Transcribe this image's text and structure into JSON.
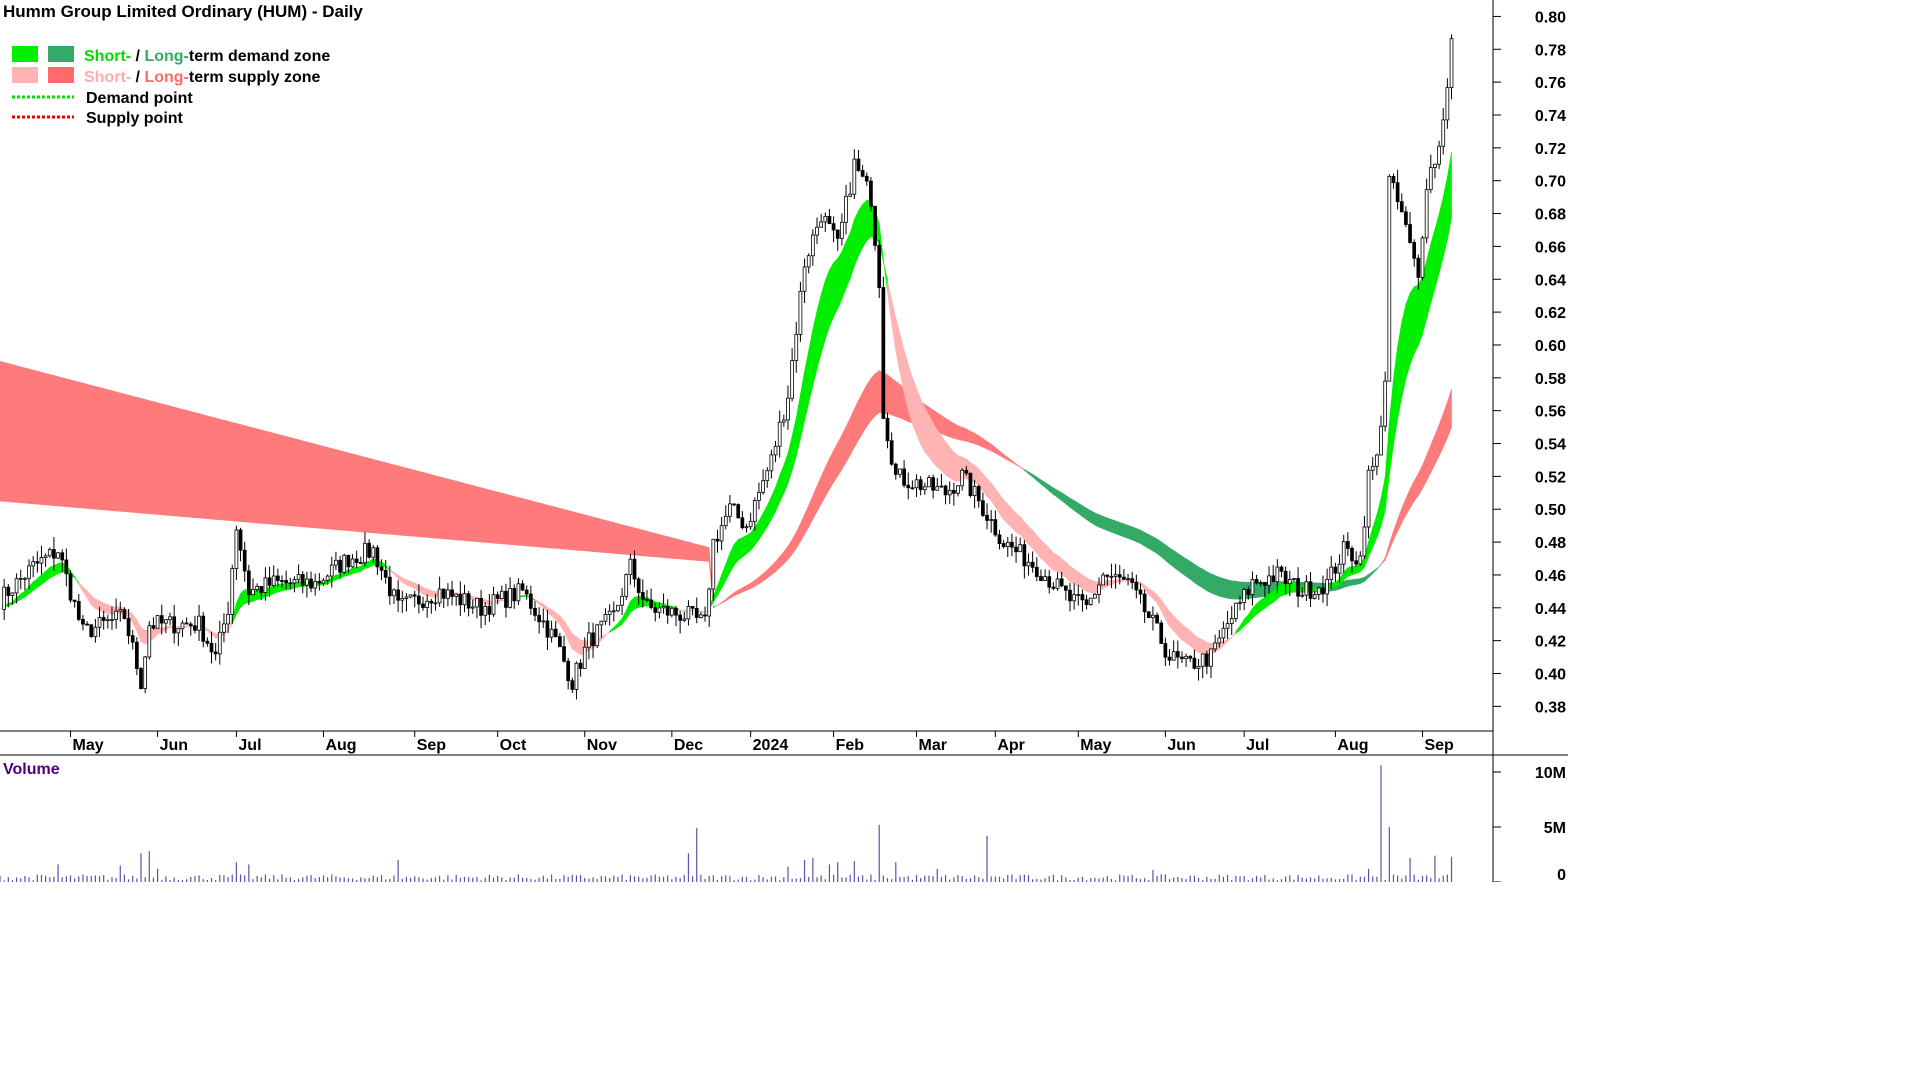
{
  "chart_data": {
    "type": "candlestick",
    "title": "Humm Group Limited Ordinary (HUM) - Daily",
    "legend": {
      "placement": "top-left",
      "items": [
        {
          "prefix": "Short-",
          "sep": " / ",
          "mid": "Long-",
          "suffix": "term demand zone",
          "swatches": [
            "#00ee00",
            "#33aa66"
          ],
          "prefix_color": "#00dd00",
          "mid_color": "#33aa66"
        },
        {
          "prefix": "Short-",
          "sep": " / ",
          "mid": "Long-",
          "suffix": "term supply zone",
          "swatches": [
            "#ffb3b3",
            "#ff6b6b"
          ],
          "prefix_color": "#ffaaaa",
          "mid_color": "#ff6b6b"
        },
        {
          "label": "Demand point",
          "line_color": "#00dd00"
        },
        {
          "label": "Supply point",
          "line_color": "#ee0000"
        }
      ]
    },
    "price_axis": {
      "ylim": [
        0.365,
        0.81
      ],
      "ticks": [
        "0.80",
        "0.78",
        "0.76",
        "0.74",
        "0.72",
        "0.70",
        "0.68",
        "0.66",
        "0.64",
        "0.62",
        "0.60",
        "0.58",
        "0.56",
        "0.54",
        "0.52",
        "0.50",
        "0.48",
        "0.46",
        "0.44",
        "0.42",
        "0.40",
        "0.38"
      ]
    },
    "time_axis": {
      "xlim": [
        0,
        360
      ],
      "months": [
        {
          "label": "May",
          "x": 17
        },
        {
          "label": "Jun",
          "x": 38
        },
        {
          "label": "Jul",
          "x": 57
        },
        {
          "label": "Aug",
          "x": 78
        },
        {
          "label": "Sep",
          "x": 100
        },
        {
          "label": "Oct",
          "x": 120
        },
        {
          "label": "Nov",
          "x": 141
        },
        {
          "label": "Dec",
          "x": 162
        },
        {
          "label": "2024",
          "x": 181
        },
        {
          "label": "Feb",
          "x": 201
        },
        {
          "label": "Mar",
          "x": 221
        },
        {
          "label": "Apr",
          "x": 240
        },
        {
          "label": "May",
          "x": 260
        },
        {
          "label": "Jun",
          "x": 281
        },
        {
          "label": "Jul",
          "x": 300
        },
        {
          "label": "Aug",
          "x": 322
        },
        {
          "label": "Sep",
          "x": 343
        }
      ]
    },
    "price_keypoints": [
      [
        0,
        0.445
      ],
      [
        8,
        0.465
      ],
      [
        14,
        0.475
      ],
      [
        20,
        0.425
      ],
      [
        30,
        0.435
      ],
      [
        34,
        0.395
      ],
      [
        36,
        0.43
      ],
      [
        48,
        0.43
      ],
      [
        52,
        0.41
      ],
      [
        55,
        0.44
      ],
      [
        57,
        0.49
      ],
      [
        60,
        0.45
      ],
      [
        66,
        0.455
      ],
      [
        76,
        0.455
      ],
      [
        84,
        0.47
      ],
      [
        90,
        0.475
      ],
      [
        96,
        0.44
      ],
      [
        106,
        0.45
      ],
      [
        116,
        0.44
      ],
      [
        126,
        0.45
      ],
      [
        134,
        0.42
      ],
      [
        138,
        0.395
      ],
      [
        142,
        0.42
      ],
      [
        148,
        0.435
      ],
      [
        152,
        0.465
      ],
      [
        156,
        0.44
      ],
      [
        166,
        0.435
      ],
      [
        170,
        0.43
      ],
      [
        172,
        0.48
      ],
      [
        176,
        0.5
      ],
      [
        180,
        0.49
      ],
      [
        186,
        0.53
      ],
      [
        190,
        0.57
      ],
      [
        194,
        0.65
      ],
      [
        198,
        0.68
      ],
      [
        202,
        0.66
      ],
      [
        206,
        0.71
      ],
      [
        210,
        0.69
      ],
      [
        212,
        0.64
      ],
      [
        213,
        0.56
      ],
      [
        216,
        0.52
      ],
      [
        222,
        0.515
      ],
      [
        228,
        0.51
      ],
      [
        232,
        0.52
      ],
      [
        236,
        0.505
      ],
      [
        242,
        0.48
      ],
      [
        250,
        0.465
      ],
      [
        258,
        0.445
      ],
      [
        262,
        0.44
      ],
      [
        266,
        0.46
      ],
      [
        272,
        0.455
      ],
      [
        278,
        0.43
      ],
      [
        282,
        0.41
      ],
      [
        286,
        0.405
      ],
      [
        292,
        0.41
      ],
      [
        296,
        0.43
      ],
      [
        302,
        0.455
      ],
      [
        308,
        0.46
      ],
      [
        314,
        0.45
      ],
      [
        320,
        0.455
      ],
      [
        324,
        0.475
      ],
      [
        328,
        0.47
      ],
      [
        330,
        0.52
      ],
      [
        332,
        0.53
      ],
      [
        334,
        0.58
      ],
      [
        335,
        0.7
      ],
      [
        338,
        0.68
      ],
      [
        342,
        0.64
      ],
      [
        344,
        0.7
      ],
      [
        347,
        0.72
      ],
      [
        349,
        0.76
      ],
      [
        350,
        0.785
      ]
    ],
    "volume_axis": {
      "ylim": [
        0,
        11
      ],
      "ticks": [
        "10M",
        "5M",
        "0"
      ],
      "title": "Volume"
    },
    "volume_spikes": [
      [
        14,
        1.6
      ],
      [
        29,
        1.5
      ],
      [
        34,
        2.6
      ],
      [
        36,
        2.8
      ],
      [
        38,
        1.2
      ],
      [
        57,
        1.8
      ],
      [
        60,
        1.6
      ],
      [
        96,
        2.0
      ],
      [
        166,
        2.6
      ],
      [
        168,
        4.9
      ],
      [
        190,
        1.4
      ],
      [
        194,
        2.0
      ],
      [
        196,
        2.2
      ],
      [
        200,
        1.6
      ],
      [
        202,
        1.8
      ],
      [
        206,
        1.9
      ],
      [
        212,
        5.2
      ],
      [
        216,
        1.8
      ],
      [
        226,
        1.2
      ],
      [
        238,
        4.2
      ],
      [
        278,
        1.1
      ],
      [
        330,
        1.2
      ],
      [
        333,
        10.6
      ],
      [
        335,
        5.0
      ],
      [
        340,
        2.2
      ],
      [
        346,
        2.4
      ],
      [
        350,
        2.3
      ]
    ],
    "zones": {
      "long_supply_start": [
        0.59,
        0.55
      ],
      "long_supply_end": [
        0.476,
        0.468
      ],
      "long_end_x": 350
    }
  }
}
